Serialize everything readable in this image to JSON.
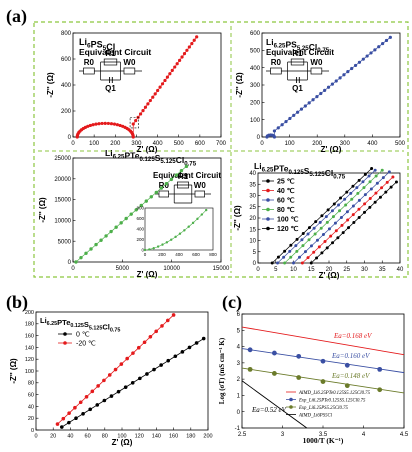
{
  "panel_labels": {
    "a": "(a)",
    "b": "(b)",
    "c": "(c)"
  },
  "colors": {
    "frame": "#8cc63f",
    "red": "#e41a1c",
    "blue": "#3a4fa3",
    "green": "#4daf4a",
    "black": "#000000",
    "gray": "#9e9e9e",
    "olive": "#6b7b2a"
  },
  "chart_data": [
    {
      "id": "a1",
      "type": "scatter",
      "title": "Li6PS5Cl",
      "subtitle": "Equivalent Circuit",
      "xlabel": "Z' (Ω)",
      "ylabel": "-Z'' (Ω)",
      "xlim": [
        0,
        700
      ],
      "ylim": [
        0,
        800
      ],
      "xticks": [
        0,
        100,
        200,
        300,
        400,
        500,
        600,
        700
      ],
      "yticks": [
        0,
        200,
        400,
        600,
        800
      ],
      "circuit": {
        "r0": "R0",
        "r1": "R1",
        "w0": "W0",
        "q1": "Q1"
      },
      "series": [
        {
          "color": "#e41a1c",
          "arc": {
            "start": 20,
            "end": 285,
            "height": 105
          },
          "tail": {
            "x0": 285,
            "y0": 100,
            "x1": 585,
            "y1": 770
          }
        }
      ]
    },
    {
      "id": "a2",
      "type": "scatter",
      "title": "Li6.25PS5.25Cl0.75",
      "subtitle": "Equivalent Circuit",
      "xlabel": "Z' (Ω)",
      "ylabel": "-Z'' (Ω)",
      "xlim": [
        0,
        500
      ],
      "ylim": [
        0,
        600
      ],
      "xticks": [
        0,
        100,
        200,
        300,
        400,
        500
      ],
      "yticks": [
        0,
        100,
        200,
        300,
        400,
        500,
        600
      ],
      "circuit": {
        "r0": "R0",
        "r1": "R1",
        "w0": "W0",
        "q1": "Q1"
      },
      "series": [
        {
          "color": "#3a4fa3",
          "arc": {
            "start": 18,
            "end": 45,
            "height": 12
          },
          "tail": {
            "x0": 45,
            "y0": 35,
            "x1": 465,
            "y1": 575
          }
        }
      ]
    },
    {
      "id": "a3",
      "type": "scatter",
      "title": "Li6.25PTe0.125S5.125Cl0.75",
      "subtitle": "Equivalent Circuit",
      "xlabel": "Z' (Ω)",
      "ylabel": "-Z'' (Ω)",
      "xlim": [
        0,
        15000
      ],
      "ylim": [
        0,
        25000
      ],
      "xticks": [
        0,
        5000,
        10000,
        15000
      ],
      "yticks": [
        0,
        5000,
        10000,
        15000,
        20000,
        25000
      ],
      "circuit": {
        "r0": "R0",
        "r1": "R1",
        "w0": "W0"
      },
      "series": [
        {
          "color": "#4daf4a",
          "tail": {
            "x0": 300,
            "y0": 0,
            "x1": 11500,
            "y1": 23000
          }
        }
      ],
      "inset": {
        "xlim": [
          0,
          800
        ],
        "ylim": [
          0,
          800
        ],
        "xticks": [
          0,
          200,
          400,
          600,
          800
        ],
        "yticks": [
          0,
          200,
          400,
          600,
          800
        ]
      }
    },
    {
      "id": "a4",
      "type": "scatter",
      "title": "Li6.25PTe0.125S5.125Cl0.75",
      "xlabel": "Z' (Ω)",
      "ylabel": "-Z'' (Ω)",
      "xlim": [
        0,
        40
      ],
      "ylim": [
        0,
        40
      ],
      "xticks": [
        0,
        5,
        10,
        15,
        20,
        25,
        30,
        35,
        40
      ],
      "yticks": [
        0,
        5,
        10,
        15,
        20,
        25,
        30,
        35,
        40
      ],
      "series": [
        {
          "name": "25 ℃",
          "color": "#000000",
          "x0": 15,
          "x1": 39
        },
        {
          "name": "40 ℃",
          "color": "#e41a1c",
          "x0": 12.5,
          "x1": 38
        },
        {
          "name": "60 ℃",
          "color": "#3a4fa3",
          "x0": 10,
          "x1": 37
        },
        {
          "name": "80 ℃",
          "color": "#4daf4a",
          "x0": 7.5,
          "x1": 35
        },
        {
          "name": "100 ℃",
          "color": "#3a4fa3",
          "x0": 5.5,
          "x1": 33
        },
        {
          "name": "120 ℃",
          "color": "#000000",
          "x0": 4,
          "x1": 32
        }
      ]
    },
    {
      "id": "b",
      "type": "scatter",
      "title": "Li6.25PTe0.125S5.125Cl0.75",
      "xlabel": "Z' (Ω)",
      "ylabel": "-Z'' (Ω)",
      "xlim": [
        0,
        200
      ],
      "ylim": [
        0,
        200
      ],
      "xticks": [
        0,
        20,
        40,
        60,
        80,
        100,
        120,
        140,
        160,
        180,
        200
      ],
      "yticks": [
        0,
        20,
        40,
        60,
        80,
        100,
        120,
        140,
        160,
        180,
        200
      ],
      "series": [
        {
          "name": "0 ℃",
          "color": "#000000",
          "x0": 30,
          "y0": 5,
          "x1": 195,
          "y1": 155
        },
        {
          "name": "-20 ℃",
          "color": "#e41a1c",
          "x0": 25,
          "y0": 10,
          "x1": 160,
          "y1": 195
        }
      ]
    },
    {
      "id": "c",
      "type": "line",
      "xlabel": "1000/T (K⁻¹)",
      "ylabel": "Log (σT) (mS cm⁻¹ K)",
      "xlim": [
        2.5,
        4.5
      ],
      "ylim": [
        -1,
        6
      ],
      "xticks": [
        2.5,
        3.0,
        3.5,
        4.0,
        4.5
      ],
      "yticks": [
        -1,
        0,
        1,
        2,
        3,
        4,
        5,
        6
      ],
      "series": [
        {
          "name": "AIMD_Li6.25PTe0.125S5.125Cl0.75",
          "color": "#e41a1c",
          "marker": "none",
          "x": [
            2.5,
            4.5
          ],
          "y": [
            5.2,
            3.5
          ]
        },
        {
          "name": "Exp_Li6.25PTe0.125S5.125Cl0.75",
          "color": "#3a4fa3",
          "marker": "circle",
          "x": [
            2.6,
            2.9,
            3.2,
            3.5,
            3.8,
            4.2
          ],
          "y": [
            3.8,
            3.6,
            3.4,
            3.1,
            2.85,
            2.6
          ]
        },
        {
          "name": "Exp_Li6.25PS5.25Cl0.75",
          "color": "#6b7b2a",
          "marker": "circle",
          "x": [
            2.6,
            2.9,
            3.2,
            3.5,
            3.8,
            4.2
          ],
          "y": [
            2.6,
            2.35,
            2.1,
            1.85,
            1.6,
            1.35
          ]
        },
        {
          "name": "AIMD_Li6PS5Cl",
          "color": "#000000",
          "marker": "none",
          "x": [
            2.5,
            3.3
          ],
          "y": [
            1.9,
            -1.0
          ]
        }
      ],
      "annotations": [
        "Ea=0.168 eV",
        "Ea=0.160 eV",
        "Ea=0.148 eV",
        "Ea=0.52 eV"
      ]
    }
  ]
}
